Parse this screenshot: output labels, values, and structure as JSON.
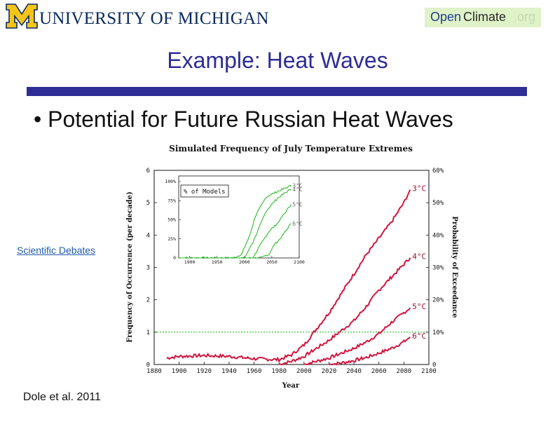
{
  "header": {
    "university": "UNIVERSITY OF MICHIGAN",
    "brand": {
      "open": "Open",
      "climate": "Climate",
      "org": ".org"
    }
  },
  "slide": {
    "title": "Example: Heat Waves",
    "bullet": "• Potential for Future Russian Heat Waves",
    "link": "Scientific Debates",
    "citation": "Dole et al. 2011"
  },
  "colors": {
    "accent": "#2e2e96",
    "curve": "#d0153f",
    "inset": "#2dbb2d",
    "link": "#1f5aa8"
  },
  "chart_data": {
    "type": "line",
    "title": "Simulated Frequency of July Temperature Extremes",
    "xlabel": "Year",
    "ylabel": "Frequency of Occurrence (per decade)",
    "y2label": "Probability of Exceedance",
    "xlim": [
      1880,
      2100
    ],
    "ylim": [
      0,
      6
    ],
    "x_ticks": [
      "1880",
      "1900",
      "1920",
      "1940",
      "1960",
      "1980",
      "2000",
      "2020",
      "2040",
      "2060",
      "2080",
      "2100"
    ],
    "y_ticks": [
      "0",
      "1",
      "2",
      "3",
      "4",
      "5",
      "6"
    ],
    "y2_ticks": [
      "0",
      "10%",
      "20%",
      "30%",
      "40%",
      "50%",
      "60%"
    ],
    "reference_line": 1,
    "series": [
      {
        "name": "3°C",
        "x": [
          1890,
          1900,
          1920,
          1940,
          1960,
          1980,
          1990,
          2000,
          2010,
          2020,
          2030,
          2040,
          2050,
          2060,
          2070,
          2080,
          2085
        ],
        "y": [
          0.2,
          0.25,
          0.28,
          0.25,
          0.18,
          0.15,
          0.3,
          0.6,
          1.1,
          1.6,
          2.2,
          2.8,
          3.4,
          3.9,
          4.4,
          5.0,
          5.4
        ]
      },
      {
        "name": "4°C",
        "x": [
          1980,
          1990,
          2000,
          2010,
          2020,
          2030,
          2040,
          2050,
          2060,
          2070,
          2080,
          2085
        ],
        "y": [
          0,
          0.1,
          0.25,
          0.5,
          0.75,
          1.05,
          1.35,
          1.8,
          2.3,
          2.7,
          3.1,
          3.3
        ]
      },
      {
        "name": "5°C",
        "x": [
          2000,
          2010,
          2020,
          2030,
          2040,
          2050,
          2060,
          2070,
          2080,
          2085
        ],
        "y": [
          0,
          0.1,
          0.2,
          0.35,
          0.5,
          0.7,
          0.95,
          1.3,
          1.6,
          1.75
        ]
      },
      {
        "name": "6°C",
        "x": [
          2020,
          2030,
          2040,
          2050,
          2060,
          2070,
          2080,
          2085
        ],
        "y": [
          0,
          0.05,
          0.12,
          0.22,
          0.35,
          0.5,
          0.7,
          0.85
        ]
      }
    ],
    "inset": {
      "label": "% of Models",
      "xlim": [
        1880,
        2100
      ],
      "ylim": [
        0,
        100
      ],
      "x_ticks": [
        "1900",
        "1950",
        "2000",
        "2050",
        "2100"
      ],
      "y_ticks": [
        "0",
        "25%",
        "50%",
        "75%",
        "100%"
      ],
      "series": [
        {
          "name": "3°C",
          "x": [
            1880,
            1980,
            1995,
            2010,
            2020,
            2040,
            2060,
            2080,
            2085
          ],
          "y": [
            0,
            0,
            5,
            30,
            55,
            80,
            87,
            93,
            95
          ]
        },
        {
          "name": "4°C",
          "x": [
            1880,
            2000,
            2015,
            2030,
            2040,
            2060,
            2080,
            2085
          ],
          "y": [
            0,
            0,
            20,
            45,
            62,
            78,
            88,
            90
          ]
        },
        {
          "name": "5°C",
          "x": [
            1880,
            2015,
            2030,
            2045,
            2060,
            2070,
            2080,
            2085
          ],
          "y": [
            0,
            0,
            18,
            35,
            45,
            55,
            65,
            70
          ]
        },
        {
          "name": "6°C",
          "x": [
            1880,
            2030,
            2045,
            2055,
            2065,
            2075,
            2085
          ],
          "y": [
            0,
            0,
            5,
            18,
            25,
            35,
            45
          ]
        }
      ]
    }
  }
}
